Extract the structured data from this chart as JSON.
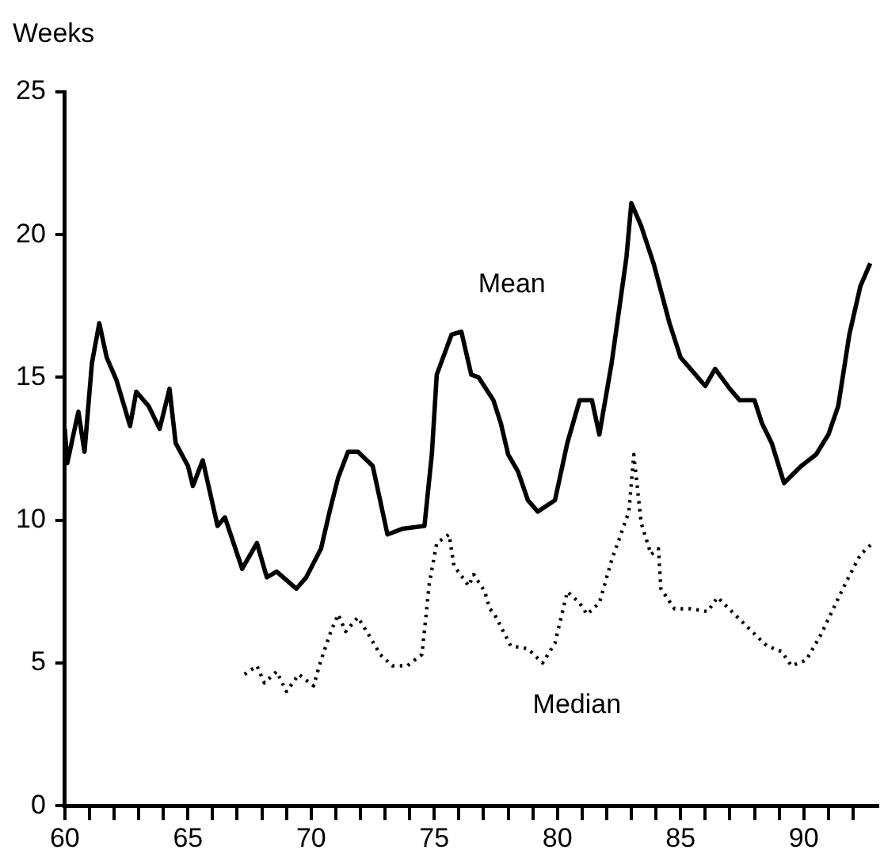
{
  "chart_data": {
    "type": "line",
    "ylabel": "Weeks",
    "xlim": [
      60,
      93
    ],
    "ylim": [
      0,
      25
    ],
    "xticks": [
      60,
      {
        "value": 61,
        "label": null
      },
      {
        "value": 62,
        "label": null
      },
      {
        "value": 63,
        "label": null
      },
      {
        "value": 64,
        "label": null
      },
      65,
      {
        "value": 66,
        "label": null
      },
      {
        "value": 67,
        "label": null
      },
      {
        "value": 68,
        "label": null
      },
      {
        "value": 69,
        "label": null
      },
      70,
      {
        "value": 71,
        "label": null
      },
      {
        "value": 72,
        "label": null
      },
      {
        "value": 73,
        "label": null
      },
      {
        "value": 74,
        "label": null
      },
      75,
      {
        "value": 76,
        "label": null
      },
      {
        "value": 77,
        "label": null
      },
      {
        "value": 78,
        "label": null
      },
      {
        "value": 79,
        "label": null
      },
      80,
      {
        "value": 81,
        "label": null
      },
      {
        "value": 82,
        "label": null
      },
      {
        "value": 83,
        "label": null
      },
      {
        "value": 84,
        "label": null
      },
      85,
      {
        "value": 86,
        "label": null
      },
      {
        "value": 87,
        "label": null
      },
      {
        "value": 88,
        "label": null
      },
      {
        "value": 89,
        "label": null
      },
      90,
      {
        "value": 91,
        "label": null
      },
      {
        "value": 92,
        "label": null
      }
    ],
    "yticks": [
      0,
      5,
      10,
      15,
      20,
      25
    ],
    "grid": false,
    "legend": false,
    "marker": "none",
    "series": [
      {
        "name": "Mean",
        "color": "#000000",
        "line_style": "solid",
        "x": [
          60,
          60.1,
          60.55,
          60.8,
          61.1,
          61.4,
          61.7,
          62.1,
          62.65,
          62.9,
          63.4,
          63.85,
          64.25,
          64.5,
          65,
          65.2,
          65.6,
          66.2,
          66.5,
          67.2,
          67.8,
          68.2,
          68.6,
          69.4,
          69.8,
          70.4,
          70.75,
          71.1,
          71.5,
          71.9,
          72.5,
          73.1,
          73.7,
          74.6,
          74.9,
          75.1,
          75.7,
          76.1,
          76.5,
          76.8,
          77.4,
          77.7,
          78,
          78.4,
          78.8,
          79.2,
          79.9,
          80.4,
          80.9,
          81.4,
          81.7,
          82.2,
          82.8,
          83,
          83.4,
          83.9,
          84.55,
          85,
          85.4,
          86,
          86.4,
          87,
          87.4,
          88,
          88.3,
          88.7,
          89.2,
          89.9,
          90.5,
          91,
          91.4,
          91.85,
          92.3,
          92.7
        ],
        "values": [
          13.2,
          12,
          13.8,
          12.4,
          15.5,
          16.9,
          15.7,
          14.9,
          13.3,
          14.5,
          14,
          13.2,
          14.6,
          12.7,
          11.9,
          11.2,
          12.1,
          9.8,
          10.1,
          8.3,
          9.2,
          8,
          8.2,
          7.6,
          8,
          9,
          10.3,
          11.5,
          12.4,
          12.4,
          11.9,
          9.5,
          9.7,
          9.8,
          12.3,
          15.1,
          16.5,
          16.6,
          15.1,
          15,
          14.2,
          13.4,
          12.3,
          11.7,
          10.7,
          10.3,
          10.7,
          12.7,
          14.2,
          14.2,
          13,
          15.5,
          19.2,
          21.1,
          20.3,
          19,
          16.9,
          15.7,
          15.3,
          14.7,
          15.3,
          14.6,
          14.2,
          14.2,
          13.4,
          12.7,
          11.3,
          11.9,
          12.3,
          13,
          14,
          16.5,
          18.2,
          19
        ]
      },
      {
        "name": "Median",
        "color": "#000000",
        "line_style": "dotted",
        "x": [
          67.3,
          67.8,
          68.1,
          68.6,
          69,
          69.5,
          70.1,
          70.4,
          70.8,
          71.1,
          71.4,
          71.9,
          72.4,
          72.8,
          73.3,
          73.9,
          74.5,
          74.8,
          75.1,
          75.6,
          75.8,
          76.4,
          76.6,
          77.05,
          77.25,
          77.45,
          78.1,
          78.8,
          79.4,
          79.9,
          80.4,
          80.9,
          81.2,
          81.7,
          82.2,
          82.9,
          83.1,
          83.4,
          83.8,
          84.1,
          84.2,
          84.75,
          85.4,
          86.1,
          86.5,
          87.2,
          87.9,
          88.5,
          89.1,
          89.5,
          90.1,
          90.7,
          91.2,
          91.7,
          92.3,
          92.8
        ],
        "values": [
          4.6,
          4.9,
          4.3,
          4.7,
          4,
          4.6,
          4.2,
          5.1,
          6.1,
          6.7,
          6.1,
          6.6,
          5.9,
          5.3,
          4.9,
          4.9,
          5.3,
          7.8,
          9.2,
          9.5,
          8.4,
          7.7,
          8.1,
          7.5,
          6.9,
          6.7,
          5.6,
          5.5,
          5,
          5.7,
          7.5,
          7.1,
          6.7,
          7.1,
          8.6,
          10.3,
          12.3,
          9.9,
          8.8,
          9,
          7.6,
          6.9,
          6.9,
          6.8,
          7.3,
          6.7,
          6.1,
          5.6,
          5.4,
          4.9,
          5.1,
          6,
          6.9,
          7.8,
          8.8,
          9.2
        ]
      }
    ]
  }
}
